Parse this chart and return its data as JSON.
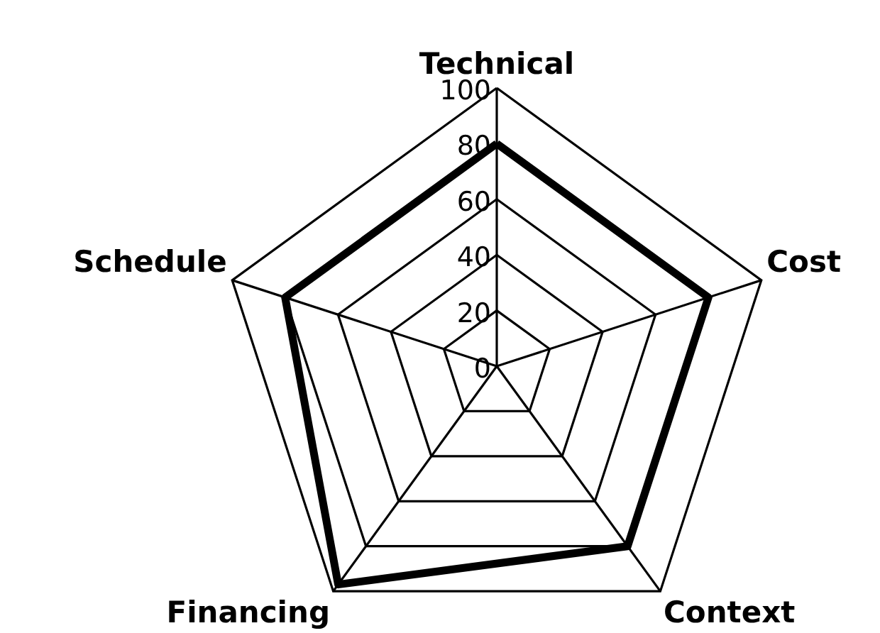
{
  "chart_data": {
    "type": "radar",
    "categories": [
      "Technical",
      "Cost",
      "Context",
      "Financing",
      "Schedule"
    ],
    "series": [
      {
        "color": "#000000",
        "values": [
          80,
          80,
          80,
          97,
          80
        ]
      }
    ],
    "ylim": [
      0,
      100
    ],
    "yticks": [
      0,
      20,
      40,
      60,
      80,
      100
    ],
    "grid": true
  }
}
